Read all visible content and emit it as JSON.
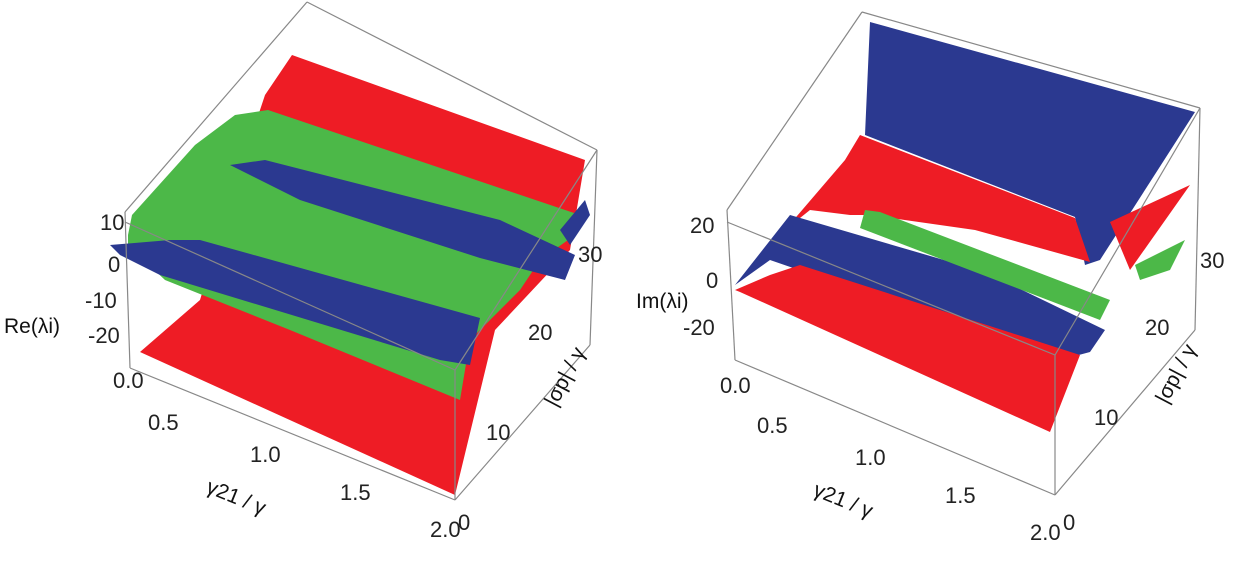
{
  "chart_data": [
    {
      "type": "surface3d",
      "zlabel": "Re(λi)",
      "xlabel": "γ21 / γ",
      "ylabel": "|σp| / γ",
      "x_ticks": [
        "0.0",
        "0.5",
        "1.0",
        "1.5",
        "2.0"
      ],
      "y_ticks": [
        "0",
        "10",
        "20",
        "30"
      ],
      "z_ticks": [
        "10",
        "0",
        "-10",
        "-20"
      ],
      "xlim": [
        0,
        2
      ],
      "ylim": [
        0,
        30
      ],
      "zlim": [
        -25,
        12
      ],
      "surface_colors": [
        "#ee1c25",
        "#4cb848",
        "#2b3990"
      ]
    },
    {
      "type": "surface3d",
      "zlabel": "Im(λi)",
      "xlabel": "γ21 / γ",
      "ylabel": "|σp| / γ",
      "x_ticks": [
        "0.0",
        "0.5",
        "1.0",
        "1.5",
        "2.0"
      ],
      "y_ticks": [
        "0",
        "10",
        "20",
        "30"
      ],
      "z_ticks": [
        "20",
        "0",
        "-20"
      ],
      "xlim": [
        0,
        2
      ],
      "ylim": [
        0,
        30
      ],
      "zlim": [
        -30,
        30
      ],
      "surface_colors": [
        "#ee1c25",
        "#4cb848",
        "#2b3990"
      ]
    }
  ]
}
